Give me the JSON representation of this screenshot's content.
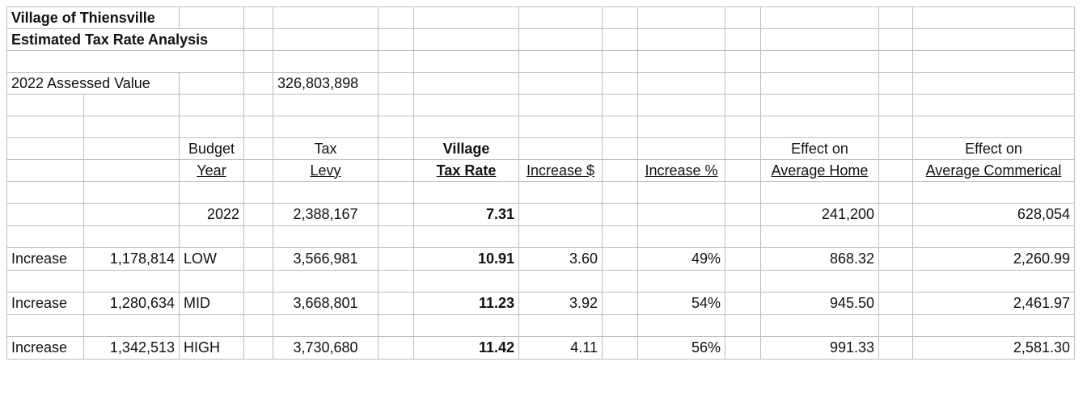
{
  "sheet": {
    "title": "Village of Thiensville",
    "subtitle": "Estimated Tax Rate Analysis",
    "assessed": {
      "label": "2022 Assessed Value",
      "value": "326,803,898"
    },
    "headers": {
      "budget_top": "Budget",
      "budget_bottom": "Year",
      "levy_top": "Tax",
      "levy_bottom": "Levy",
      "rate_top": "Village",
      "rate_bottom": "Tax Rate",
      "increase_dollar": "Increase $",
      "increase_pct": "Increase %",
      "home_top": "Effect on",
      "home_bottom": "Average Home",
      "commercial_top": "Effect on",
      "commercial_bottom": "Average Commerical"
    },
    "base": {
      "year": "2022",
      "levy": "2,388,167",
      "rate": "7.31",
      "home": "241,200",
      "commercial": "628,054"
    },
    "scenarios": [
      {
        "label": "Increase",
        "amount": "1,178,814",
        "level": "LOW",
        "levy": "3,566,981",
        "rate": "10.91",
        "inc_dollar": "3.60",
        "inc_pct": "49%",
        "home": "868.32",
        "commercial": "2,260.99"
      },
      {
        "label": "Increase",
        "amount": "1,280,634",
        "level": "MID",
        "levy": "3,668,801",
        "rate": "11.23",
        "inc_dollar": "3.92",
        "inc_pct": "54%",
        "home": "945.50",
        "commercial": "2,461.97"
      },
      {
        "label": "Increase",
        "amount": "1,342,513",
        "level": "HIGH",
        "levy": "3,730,680",
        "rate": "11.42",
        "inc_dollar": "4.11",
        "inc_pct": "56%",
        "home": "991.33",
        "commercial": "2,581.30"
      }
    ]
  }
}
